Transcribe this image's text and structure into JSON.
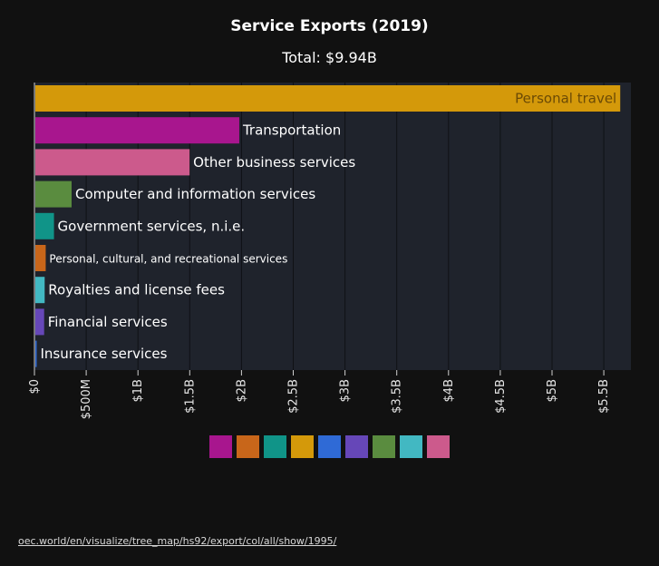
{
  "title": "Service Exports (2019)",
  "subtitle": "Total: $9.94B",
  "source_link": "oec.world/en/visualize/tree_map/hs92/export/col/all/show/1995/",
  "chart_data": {
    "type": "bar",
    "orientation": "horizontal",
    "title": "Service Exports (2019)",
    "subtitle": "Total: $9.94B",
    "categories": [
      "Personal travel",
      "Transportation",
      "Other business services",
      "Computer and information services",
      "Government services, n.i.e.",
      "Personal, cultural, and recreational services",
      "Royalties and license fees",
      "Financial services",
      "Insurance services"
    ],
    "values": [
      5650000000,
      1970000000,
      1490000000,
      350000000,
      180000000,
      100000000,
      90000000,
      85000000,
      12000000
    ],
    "colors": [
      "#d4990a",
      "#a8168e",
      "#cc5a8c",
      "#5a8c3f",
      "#109488",
      "#c8661a",
      "#42b8c2",
      "#6647b8",
      "#2f6ad6"
    ],
    "xlim": [
      0,
      5800000000
    ],
    "xticks": [
      "$0",
      "$500M",
      "$1B",
      "$1.5B",
      "$2B",
      "$2.5B",
      "$3B",
      "$3.5B",
      "$4B",
      "$4.5B",
      "$5B",
      "$5.5B"
    ],
    "xtick_step": 500000000,
    "grid": true,
    "legend_swatches": [
      "#a8168e",
      "#c8661a",
      "#109488",
      "#d4990a",
      "#2f6ad6",
      "#6647b8",
      "#5a8c3f",
      "#42b8c2",
      "#cc5a8c"
    ]
  }
}
